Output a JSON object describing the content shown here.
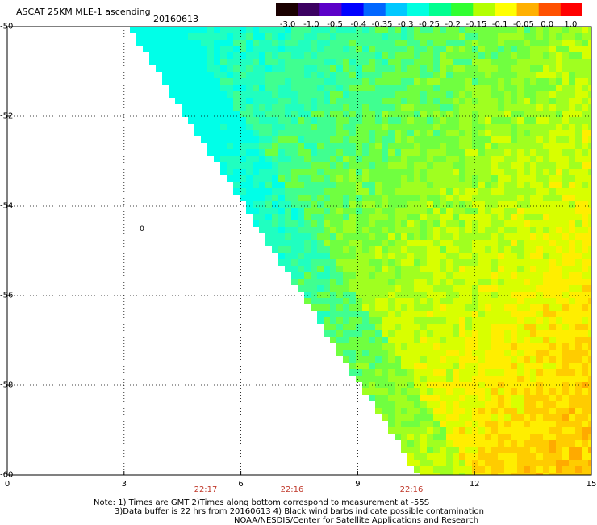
{
  "header": {
    "title": "ASCAT 25KM MLE-1 ascending",
    "date": "20160613"
  },
  "colorbar": {
    "labels": [
      "-3.0",
      "-1.0",
      "-0.5",
      "-0.4",
      "-0.35",
      "-0.3",
      "-0.25",
      "-0.2",
      "-0.15",
      "-0.1",
      "-0.05",
      "0.0",
      "1.0"
    ],
    "colors": [
      "#1a0000",
      "#3b0060",
      "#5b00c8",
      "#0000ff",
      "#0066ff",
      "#00c8ff",
      "#00ffe0",
      "#00ff90",
      "#30ff30",
      "#b4ff00",
      "#ffff00",
      "#ffb000",
      "#ff5000",
      "#ff0000"
    ]
  },
  "axes": {
    "y_ticks": [
      "-50",
      "-52",
      "-54",
      "-56",
      "-58",
      "-60"
    ],
    "x_ticks": [
      "0",
      "3",
      "6",
      "9",
      "12",
      "15"
    ],
    "time_labels": [
      "22:17",
      "22:16",
      "22:16"
    ],
    "lat_range": [
      -60,
      -50
    ],
    "lon_range": [
      0,
      15
    ]
  },
  "marker": {
    "label": "0",
    "lon": 3.4,
    "lat": -54.5
  },
  "notes": {
    "line1": "Note: 1) Times are GMT 2)Times along bottom correspond to measurement at -55S",
    "line2": "3)Data buffer is 22 hrs from 20160613 4) Black wind barbs indicate possible contamination",
    "line3": "NOAA/NESDIS/Center for Satellite Applications and Research"
  }
}
